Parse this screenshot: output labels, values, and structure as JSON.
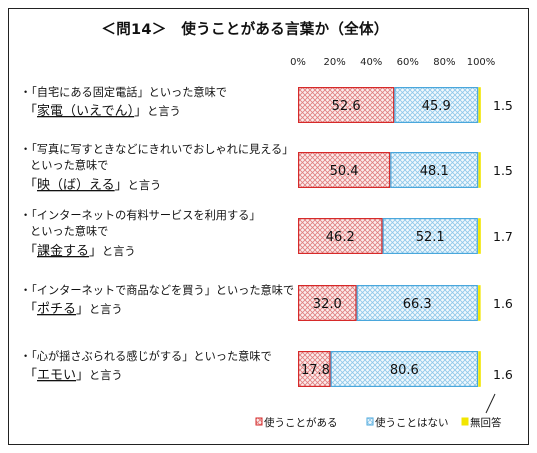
{
  "title": "＜問14＞　使うことがある言葉か（全体）",
  "chart_data": {
    "type": "bar",
    "orientation": "horizontal",
    "stacked": true,
    "percent": true,
    "xlim": [
      0,
      100
    ],
    "x_ticks": [
      "0%",
      "20%",
      "40%",
      "60%",
      "80%",
      "100%"
    ],
    "categories": [
      {
        "pre": "・「自宅にある固定電話」といった意味で",
        "mid": "",
        "q1": "「",
        "key": "家電（いえでん）",
        "q2": "」",
        "post": "と言う"
      },
      {
        "pre": "・「写真に写すときなどにきれいでおしゃれに見える」",
        "mid": "といった意味で",
        "q1": "「",
        "key": "映（ば）える",
        "q2": "」",
        "post": "と言う"
      },
      {
        "pre": "・「インターネットの有料サービスを利用する」",
        "mid": "といった意味で",
        "q1": "「",
        "key": "課金する",
        "q2": "」",
        "post": "と言う"
      },
      {
        "pre": "・「インターネットで商品などを買う」といった意味で",
        "mid": "",
        "q1": "「",
        "key": "ポチる",
        "q2": "」",
        "post": "と言う"
      },
      {
        "pre": "・「心が揺さぶられる感じがする」といった意味で",
        "mid": "",
        "q1": "「",
        "key": "エモい",
        "q2": "」",
        "post": "と言う"
      }
    ],
    "series": [
      {
        "name": "使うことがある",
        "values": [
          52.6,
          50.4,
          46.2,
          32.0,
          17.8
        ],
        "labels": [
          "52.6",
          "50.4",
          "46.2",
          "32.0",
          "17.8"
        ]
      },
      {
        "name": "使うことはない",
        "values": [
          45.9,
          48.1,
          52.1,
          66.3,
          80.6
        ],
        "labels": [
          "45.9",
          "48.1",
          "52.1",
          "66.3",
          "80.6"
        ]
      },
      {
        "name": "無回答",
        "values": [
          1.5,
          1.5,
          1.7,
          1.6,
          1.6
        ],
        "labels": [
          "1.5",
          "1.5",
          "1.7",
          "1.6",
          "1.6"
        ]
      }
    ],
    "colors": {
      "use_edge": "#d62a2a",
      "use_hatch": "#e07f7f",
      "use_fill": "#fbecec",
      "notuse_edge": "#4aa7dc",
      "notuse_hatch": "#8fc8ea",
      "notuse_fill": "#f1f8fd",
      "noans": "#f2e600"
    }
  }
}
